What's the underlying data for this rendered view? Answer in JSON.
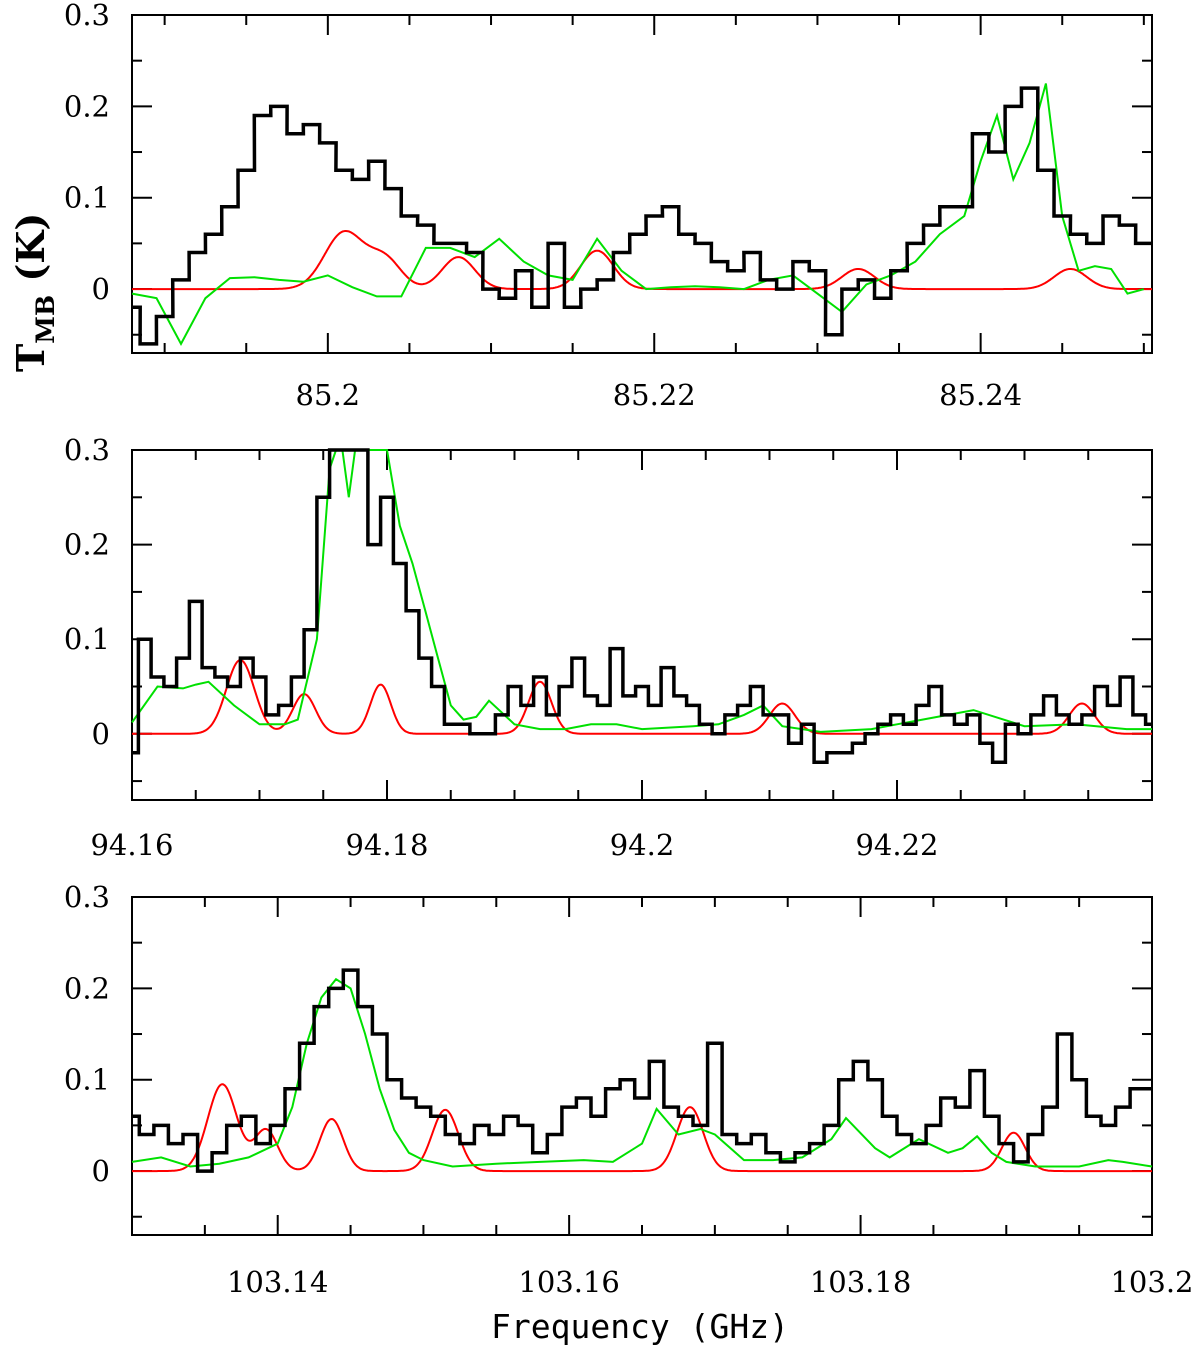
{
  "chart_data": [
    {
      "type": "line",
      "ylabel": {
        "main": "T",
        "sub": "MB",
        "unit": " (K)"
      },
      "xlim": [
        85.188,
        85.2505
      ],
      "ylim": [
        -0.07,
        0.3
      ],
      "x_ticks": [
        85.2,
        85.22,
        85.24
      ],
      "x_tick_labels": [
        "85.2",
        "85.22",
        "85.24"
      ],
      "y_ticks": [
        0,
        0.1,
        0.2,
        0.3
      ],
      "y_tick_labels": [
        "0",
        "0.1",
        "0.2",
        "0.3"
      ],
      "observed": {
        "color": "#000000",
        "x": [
          85.188,
          85.189,
          85.19,
          85.191,
          85.192,
          85.193,
          85.194,
          85.195,
          85.196,
          85.197,
          85.198,
          85.199,
          85.2,
          85.201,
          85.202,
          85.203,
          85.204,
          85.205,
          85.206,
          85.207,
          85.208,
          85.209,
          85.21,
          85.211,
          85.212,
          85.213,
          85.214,
          85.215,
          85.216,
          85.217,
          85.218,
          85.219,
          85.22,
          85.221,
          85.222,
          85.223,
          85.224,
          85.225,
          85.226,
          85.227,
          85.228,
          85.229,
          85.23,
          85.231,
          85.232,
          85.233,
          85.234,
          85.235,
          85.236,
          85.237,
          85.238,
          85.239,
          85.24,
          85.241,
          85.242,
          85.243,
          85.244,
          85.245,
          85.246,
          85.247,
          85.248,
          85.249,
          85.25
        ],
        "y": [
          -0.02,
          -0.06,
          -0.03,
          0.01,
          0.04,
          0.06,
          0.09,
          0.13,
          0.19,
          0.2,
          0.17,
          0.18,
          0.16,
          0.13,
          0.12,
          0.14,
          0.11,
          0.08,
          0.07,
          0.05,
          0.05,
          0.04,
          0.0,
          -0.01,
          0.02,
          -0.02,
          0.05,
          -0.02,
          0.0,
          0.01,
          0.04,
          0.06,
          0.08,
          0.09,
          0.06,
          0.05,
          0.03,
          0.02,
          0.04,
          0.01,
          0.0,
          0.03,
          0.02,
          -0.05,
          0.0,
          0.01,
          -0.01,
          0.02,
          0.05,
          0.07,
          0.09,
          0.09,
          0.17,
          0.15,
          0.2,
          0.22,
          0.13,
          0.08,
          0.06,
          0.05,
          0.08,
          0.07,
          0.05
        ]
      },
      "model_red": {
        "color": "#ff0000",
        "peaks": [
          {
            "x": 85.201,
            "amp": 0.062,
            "width": 0.0012
          },
          {
            "x": 85.2035,
            "amp": 0.032,
            "width": 0.001
          },
          {
            "x": 85.208,
            "amp": 0.035,
            "width": 0.001
          },
          {
            "x": 85.2165,
            "amp": 0.042,
            "width": 0.001
          },
          {
            "x": 85.2325,
            "amp": 0.022,
            "width": 0.001
          },
          {
            "x": 85.2455,
            "amp": 0.022,
            "width": 0.001
          }
        ]
      },
      "model_green": {
        "color": "#00e000",
        "x": [
          85.188,
          85.1895,
          85.191,
          85.1925,
          85.194,
          85.1955,
          85.197,
          85.1985,
          85.2,
          85.2015,
          85.203,
          85.2045,
          85.206,
          85.2075,
          85.209,
          85.2105,
          85.212,
          85.2135,
          85.215,
          85.2165,
          85.218,
          85.2195,
          85.221,
          85.2225,
          85.224,
          85.2255,
          85.227,
          85.2285,
          85.23,
          85.2315,
          85.233,
          85.2345,
          85.236,
          85.2375,
          85.239,
          85.24,
          85.241,
          85.242,
          85.243,
          85.244,
          85.245,
          85.246,
          85.247,
          85.248,
          85.249,
          85.25
        ],
        "y": [
          -0.005,
          -0.01,
          -0.06,
          -0.01,
          0.012,
          0.013,
          0.01,
          0.008,
          0.015,
          0.002,
          -0.008,
          -0.008,
          0.045,
          0.045,
          0.035,
          0.055,
          0.03,
          0.015,
          0.01,
          0.055,
          0.02,
          0.0,
          0.002,
          0.003,
          0.002,
          0.0,
          0.01,
          0.015,
          -0.005,
          -0.025,
          0.005,
          0.015,
          0.03,
          0.06,
          0.08,
          0.14,
          0.19,
          0.12,
          0.16,
          0.225,
          0.08,
          0.02,
          0.025,
          0.022,
          -0.005,
          0.0
        ]
      }
    },
    {
      "type": "line",
      "xlim": [
        94.16,
        94.24
      ],
      "ylim": [
        -0.07,
        0.3
      ],
      "x_ticks": [
        94.16,
        94.18,
        94.2,
        94.22
      ],
      "x_tick_labels": [
        "94.16",
        "94.18",
        "94.2",
        "94.22"
      ],
      "y_ticks": [
        0,
        0.1,
        0.2,
        0.3
      ],
      "y_tick_labels": [
        "0",
        "0.1",
        "0.2",
        "0.3"
      ],
      "observed": {
        "color": "#000000",
        "x": [
          94.16,
          94.161,
          94.162,
          94.163,
          94.164,
          94.165,
          94.166,
          94.167,
          94.168,
          94.169,
          94.17,
          94.171,
          94.172,
          94.173,
          94.174,
          94.175,
          94.176,
          94.177,
          94.178,
          94.179,
          94.18,
          94.181,
          94.182,
          94.183,
          94.184,
          94.185,
          94.186,
          94.187,
          94.188,
          94.189,
          94.19,
          94.191,
          94.192,
          94.193,
          94.194,
          94.195,
          94.196,
          94.197,
          94.198,
          94.199,
          94.2,
          94.201,
          94.202,
          94.203,
          94.204,
          94.205,
          94.206,
          94.207,
          94.208,
          94.209,
          94.21,
          94.211,
          94.212,
          94.213,
          94.214,
          94.215,
          94.216,
          94.217,
          94.218,
          94.219,
          94.22,
          94.221,
          94.222,
          94.223,
          94.224,
          94.225,
          94.226,
          94.227,
          94.228,
          94.229,
          94.23,
          94.231,
          94.232,
          94.233,
          94.234,
          94.235,
          94.236,
          94.237,
          94.238,
          94.239,
          94.24
        ],
        "y": [
          -0.02,
          0.1,
          0.06,
          0.05,
          0.08,
          0.14,
          0.07,
          0.06,
          0.05,
          0.08,
          0.06,
          0.02,
          0.03,
          0.06,
          0.11,
          0.25,
          0.3,
          0.3,
          0.3,
          0.2,
          0.25,
          0.18,
          0.13,
          0.08,
          0.05,
          0.01,
          0.01,
          0.0,
          0.0,
          0.02,
          0.05,
          0.03,
          0.06,
          0.02,
          0.05,
          0.08,
          0.04,
          0.03,
          0.09,
          0.04,
          0.05,
          0.03,
          0.07,
          0.04,
          0.03,
          0.01,
          0.0,
          0.02,
          0.03,
          0.05,
          0.02,
          0.02,
          -0.01,
          0.01,
          -0.03,
          -0.02,
          -0.02,
          -0.01,
          0.0,
          0.01,
          0.02,
          0.01,
          0.03,
          0.05,
          0.02,
          0.01,
          0.02,
          -0.01,
          -0.03,
          0.01,
          0.0,
          0.02,
          0.04,
          0.02,
          0.01,
          0.02,
          0.05,
          0.03,
          0.06,
          0.02,
          0.01
        ]
      },
      "model_red": {
        "color": "#ff0000",
        "peaks": [
          {
            "x": 94.1685,
            "amp": 0.078,
            "width": 0.0011
          },
          {
            "x": 94.1735,
            "amp": 0.042,
            "width": 0.0009
          },
          {
            "x": 94.1795,
            "amp": 0.052,
            "width": 0.0008
          },
          {
            "x": 94.192,
            "amp": 0.055,
            "width": 0.0009
          },
          {
            "x": 94.211,
            "amp": 0.032,
            "width": 0.001
          },
          {
            "x": 94.2345,
            "amp": 0.032,
            "width": 0.001
          }
        ]
      },
      "model_green": {
        "color": "#00e000",
        "x": [
          94.16,
          94.162,
          94.164,
          94.165,
          94.166,
          94.168,
          94.17,
          94.172,
          94.173,
          94.1745,
          94.1755,
          94.176,
          94.1765,
          94.177,
          94.1775,
          94.178,
          94.1785,
          94.179,
          94.18,
          94.181,
          94.182,
          94.183,
          94.184,
          94.185,
          94.186,
          94.187,
          94.188,
          94.19,
          94.192,
          94.194,
          94.196,
          94.198,
          94.2,
          94.204,
          94.206,
          94.208,
          94.2095,
          94.211,
          94.214,
          94.218,
          94.22,
          94.222,
          94.224,
          94.226,
          94.23,
          94.234,
          94.238,
          94.24
        ],
        "y": [
          0.012,
          0.05,
          0.048,
          0.052,
          0.055,
          0.03,
          0.01,
          0.01,
          0.015,
          0.1,
          0.28,
          0.3,
          0.3,
          0.25,
          0.3,
          0.3,
          0.3,
          0.3,
          0.3,
          0.22,
          0.18,
          0.13,
          0.08,
          0.03,
          0.015,
          0.018,
          0.035,
          0.01,
          0.005,
          0.005,
          0.01,
          0.01,
          0.005,
          0.008,
          0.01,
          0.02,
          0.03,
          0.008,
          0.002,
          0.005,
          0.01,
          0.015,
          0.02,
          0.025,
          0.008,
          0.01,
          0.005,
          0.005
        ]
      }
    },
    {
      "type": "line",
      "xlabel": "Frequency (GHz)",
      "xlim": [
        103.13,
        103.2
      ],
      "ylim": [
        -0.07,
        0.3
      ],
      "x_ticks": [
        103.14,
        103.16,
        103.18,
        103.2
      ],
      "x_tick_labels": [
        "103.14",
        "103.16",
        "103.18",
        "103.2"
      ],
      "y_ticks": [
        0,
        0.1,
        0.2,
        0.3
      ],
      "y_tick_labels": [
        "0",
        "0.1",
        "0.2",
        "0.3"
      ],
      "observed": {
        "color": "#000000",
        "x": [
          103.13,
          103.131,
          103.132,
          103.133,
          103.134,
          103.135,
          103.136,
          103.137,
          103.138,
          103.139,
          103.14,
          103.141,
          103.142,
          103.143,
          103.144,
          103.145,
          103.146,
          103.147,
          103.148,
          103.149,
          103.15,
          103.151,
          103.152,
          103.153,
          103.154,
          103.155,
          103.156,
          103.157,
          103.158,
          103.159,
          103.16,
          103.161,
          103.162,
          103.163,
          103.164,
          103.165,
          103.166,
          103.167,
          103.168,
          103.169,
          103.17,
          103.171,
          103.172,
          103.173,
          103.174,
          103.175,
          103.176,
          103.177,
          103.178,
          103.179,
          103.18,
          103.181,
          103.182,
          103.183,
          103.184,
          103.185,
          103.186,
          103.187,
          103.188,
          103.189,
          103.19,
          103.191,
          103.192,
          103.193,
          103.194,
          103.195,
          103.196,
          103.197,
          103.198,
          103.199,
          103.2
        ],
        "y": [
          0.06,
          0.04,
          0.05,
          0.03,
          0.04,
          0.0,
          0.02,
          0.05,
          0.06,
          0.03,
          0.05,
          0.09,
          0.14,
          0.18,
          0.2,
          0.22,
          0.18,
          0.15,
          0.1,
          0.08,
          0.07,
          0.06,
          0.04,
          0.03,
          0.05,
          0.04,
          0.06,
          0.05,
          0.02,
          0.04,
          0.07,
          0.08,
          0.06,
          0.09,
          0.1,
          0.08,
          0.12,
          0.07,
          0.06,
          0.05,
          0.14,
          0.04,
          0.03,
          0.04,
          0.02,
          0.01,
          0.02,
          0.03,
          0.05,
          0.1,
          0.12,
          0.1,
          0.06,
          0.04,
          0.03,
          0.05,
          0.08,
          0.07,
          0.11,
          0.06,
          0.03,
          0.01,
          0.04,
          0.07,
          0.15,
          0.1,
          0.06,
          0.05,
          0.07,
          0.09,
          0.09
        ]
      },
      "model_red": {
        "color": "#ff0000",
        "peaks": [
          {
            "x": 103.1362,
            "amp": 0.095,
            "width": 0.001
          },
          {
            "x": 103.1392,
            "amp": 0.045,
            "width": 0.0008
          },
          {
            "x": 103.1437,
            "amp": 0.057,
            "width": 0.0008
          },
          {
            "x": 103.1515,
            "amp": 0.067,
            "width": 0.0009
          },
          {
            "x": 103.1683,
            "amp": 0.07,
            "width": 0.0009
          },
          {
            "x": 103.1905,
            "amp": 0.042,
            "width": 0.0008
          }
        ]
      },
      "model_green": {
        "color": "#00e000",
        "x": [
          103.13,
          103.132,
          103.134,
          103.136,
          103.138,
          103.14,
          103.141,
          103.142,
          103.143,
          103.144,
          103.145,
          103.146,
          103.147,
          103.148,
          103.149,
          103.15,
          103.152,
          103.155,
          103.158,
          103.161,
          103.163,
          103.165,
          103.166,
          103.1675,
          103.169,
          103.17,
          103.172,
          103.174,
          103.176,
          103.178,
          103.179,
          103.181,
          103.182,
          103.184,
          103.186,
          103.187,
          103.188,
          103.189,
          103.19,
          103.192,
          103.195,
          103.197,
          103.198,
          103.2
        ],
        "y": [
          0.01,
          0.015,
          0.005,
          0.008,
          0.015,
          0.03,
          0.07,
          0.14,
          0.19,
          0.21,
          0.2,
          0.15,
          0.09,
          0.045,
          0.02,
          0.012,
          0.005,
          0.008,
          0.01,
          0.012,
          0.01,
          0.03,
          0.068,
          0.04,
          0.046,
          0.04,
          0.012,
          0.012,
          0.015,
          0.035,
          0.058,
          0.025,
          0.015,
          0.035,
          0.02,
          0.025,
          0.038,
          0.02,
          0.01,
          0.005,
          0.005,
          0.012,
          0.01,
          0.005
        ]
      }
    }
  ]
}
